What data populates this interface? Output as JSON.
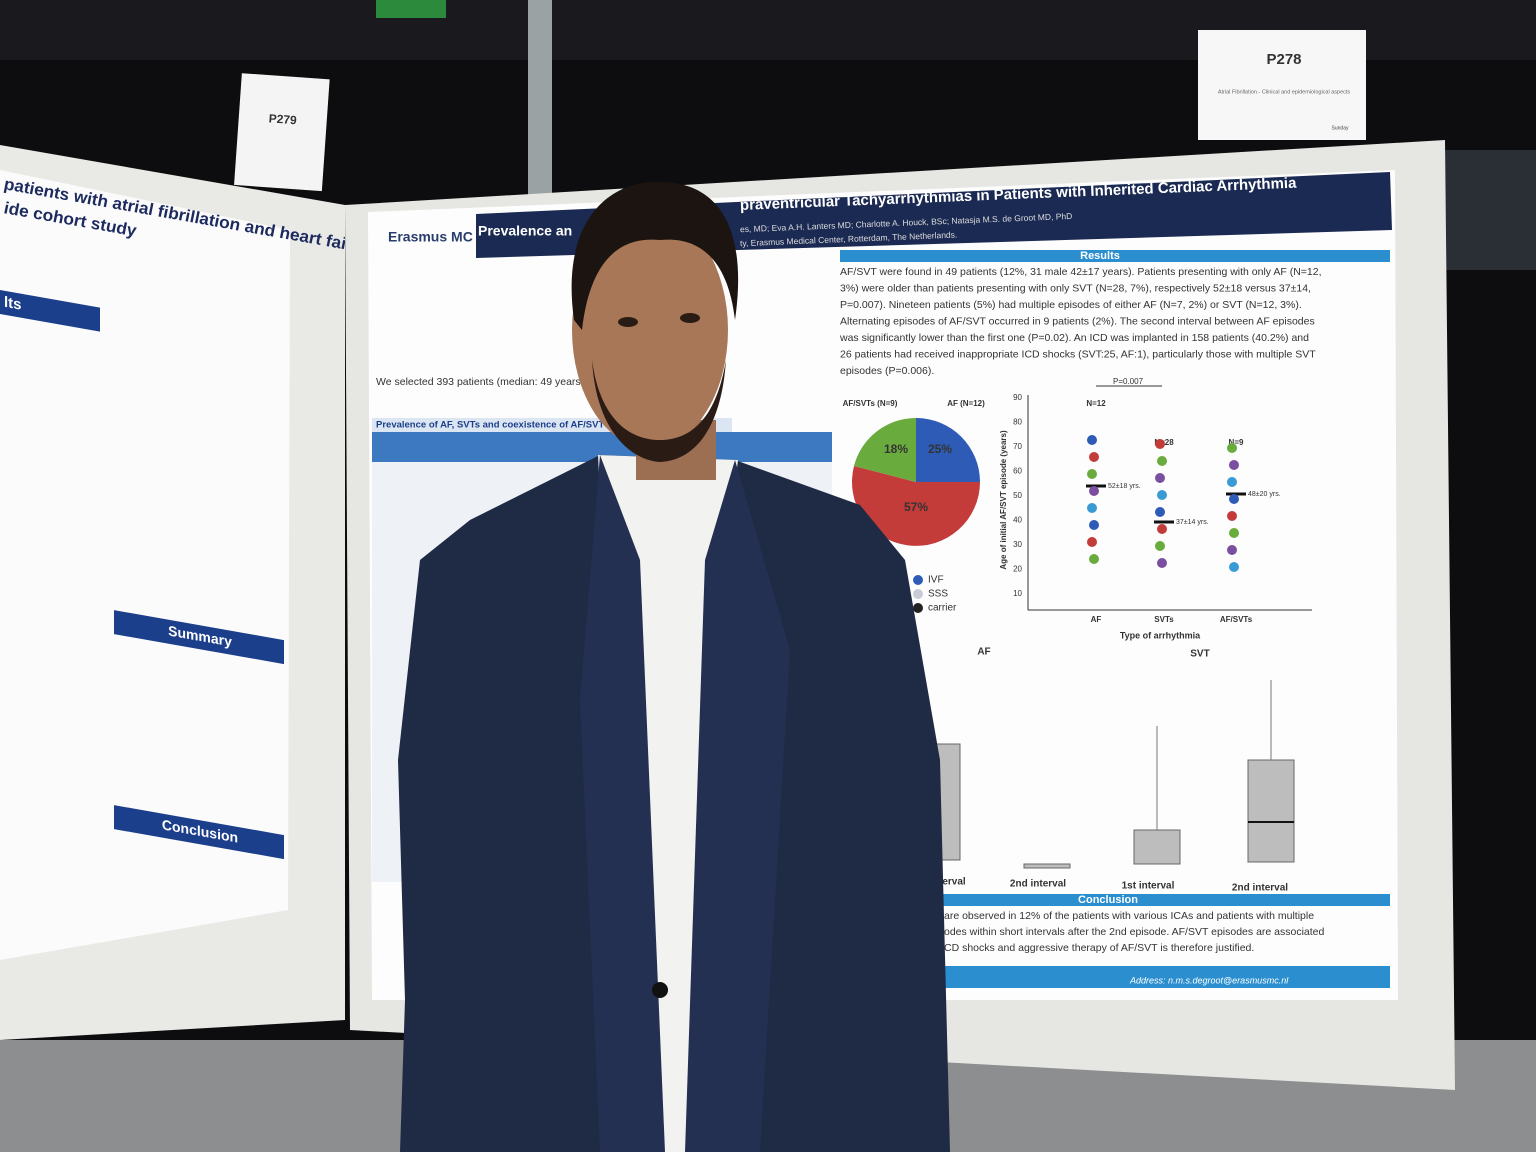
{
  "left_board": {
    "sign": {
      "code": "P279"
    },
    "poster": {
      "title_lines": [
        "patients with atrial fibrillation and heart failure:",
        "ide cohort study"
      ],
      "section_results": "lts",
      "section_summary": "Summary",
      "section_conclusion": "Conclusion"
    }
  },
  "right_board": {
    "sign": {
      "code": "P278",
      "topic": "Atrial Fibrillation - Clinical and epidemiological aspects",
      "day": "Sunday"
    },
    "poster": {
      "logo": "Erasmus MC",
      "title_left": "Prevalence an",
      "title_right": "praventricular Tachyarrhythmias in Patients with Inherited Cardiac Arrhythmia",
      "authors": "es, MD; Eva A.H. Lanters MD; Charlotte A. Houck, BSc; Natasja M.S. de Groot MD, PhD",
      "affiliation": "ty, Erasmus Medical Center, Rotterdam, The Netherlands.",
      "results_heading": "Results",
      "results_lines": [
        "AF/SVT were found in 49 patients (12%, 31 male 42±17 years). Patients presenting with only AF (N=12,",
        "3%) were older than patients presenting with only SVT (N=28, 7%), respectively 52±18 versus 37±14,",
        "P=0.007). Nineteen patients (5%) had multiple episodes of either AF (N=7, 2%) or SVT (N=12, 3%).",
        "Alternating episodes of AF/SVT occurred in 9 patients (2%). The second interval between AF episodes",
        "was significantly lower than the first one (P=0.02). An ICD was implanted in 158 patients (40.2%) and",
        "26 patients had received inappropriate ICD shocks (SVT:25, AF:1), particularly those with multiple SVT",
        "episodes (P=0.006)."
      ],
      "intro_line": "We selected 393 patients (median: 49 years,",
      "table_heading": "Prevalence of AF, SVTs and coexistence of AF/SVT",
      "pie": {
        "label_left": "AF/SVTs (N=9)",
        "label_right": "AF (N=12)",
        "slices": [
          "25%",
          "57%",
          "18%"
        ],
        "legend": [
          "IVF",
          "SSS",
          "carrier"
        ]
      },
      "scatter": {
        "y_label": "Age of initial AF/SVT episode (years)",
        "x_label": "Type of arrhythmia",
        "categories": [
          "AF",
          "SVTs",
          "AF/SVTs"
        ],
        "counts": [
          "N=12",
          "N=28",
          "N=9"
        ],
        "means": [
          "52±18 yrs.",
          "37±14 yrs.",
          "48±20 yrs."
        ],
        "p_value": "P=0.007",
        "yticks": [
          "90",
          "80",
          "70",
          "60",
          "50",
          "40",
          "30",
          "20",
          "10"
        ]
      },
      "boxplots": {
        "title_left": "AF",
        "title_right": "SVT",
        "x_labels": [
          "erval",
          "2nd interval",
          "1st interval",
          "2nd interval"
        ]
      },
      "conclusion_heading": "Conclusion",
      "conclusion_lines": [
        "are observed in 12% of the patients with various ICAs and patients with multiple",
        "odes within short intervals after the 2nd episode. AF/SVT episodes are associated",
        "CD shocks and aggressive therapy of AF/SVT is therefore justified."
      ],
      "address": "Address: n.m.s.degroot@erasmusmc.nl"
    }
  }
}
